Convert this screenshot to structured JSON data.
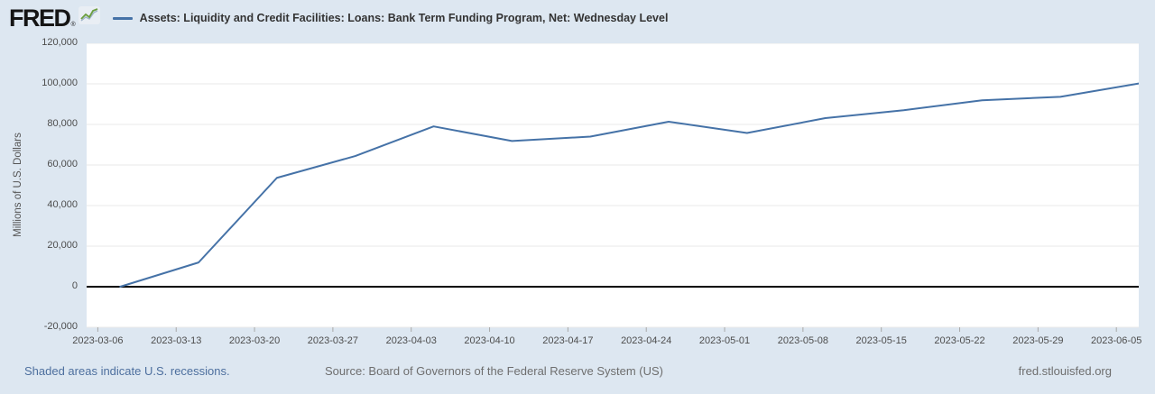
{
  "header": {
    "logo_text": "FRED",
    "logo_registered": "®",
    "legend_label": "Assets: Liquidity and Credit Facilities: Loans: Bank Term Funding Program, Net: Wednesday Level"
  },
  "footer": {
    "recession_note": "Shaded areas indicate U.S. recessions.",
    "source": "Source: Board of Governors of the Federal Reserve System (US)",
    "site": "fred.stlouisfed.org"
  },
  "colors": {
    "background": "#dde7f1",
    "plot_background": "#ffffff",
    "series_line": "#4572a7",
    "zero_line": "#000000",
    "gridline": "#e9e9e9",
    "tick_mark": "#a8a8a8",
    "tick_text": "#4d4d4d",
    "title_text": "#333333",
    "link_text": "#4d6f9e",
    "muted_text": "#6e6e6e"
  },
  "chart_data": {
    "type": "line",
    "title": "Assets: Liquidity and Credit Facilities: Loans: Bank Term Funding Program, Net: Wednesday Level",
    "xlabel": "",
    "ylabel": "Millions of U.S. Dollars",
    "grid": true,
    "legend_position": "top",
    "ylim": [
      -20000,
      120000
    ],
    "ytick_step": 20000,
    "ytick_labels": [
      "-20,000",
      "0",
      "20,000",
      "40,000",
      "60,000",
      "80,000",
      "100,000",
      "120,000"
    ],
    "x_domain": [
      "2023-03-05",
      "2023-06-07"
    ],
    "xticks": [
      "2023-03-06",
      "2023-03-13",
      "2023-03-20",
      "2023-03-27",
      "2023-04-03",
      "2023-04-10",
      "2023-04-17",
      "2023-04-24",
      "2023-05-01",
      "2023-05-08",
      "2023-05-15",
      "2023-05-22",
      "2023-05-29",
      "2023-06-05"
    ],
    "x": [
      "2023-03-08",
      "2023-03-15",
      "2023-03-22",
      "2023-03-29",
      "2023-04-05",
      "2023-04-12",
      "2023-04-19",
      "2023-04-26",
      "2023-05-03",
      "2023-05-10",
      "2023-05-17",
      "2023-05-24",
      "2023-05-31",
      "2023-06-07"
    ],
    "values": [
      0,
      11943,
      53669,
      64403,
      79021,
      71837,
      73982,
      81327,
      75778,
      83101,
      87006,
      91907,
      93615,
      100161
    ],
    "series_name": "Assets: Liquidity and Credit Facilities: Loans: Bank Term Funding Program, Net: Wednesday Level"
  }
}
